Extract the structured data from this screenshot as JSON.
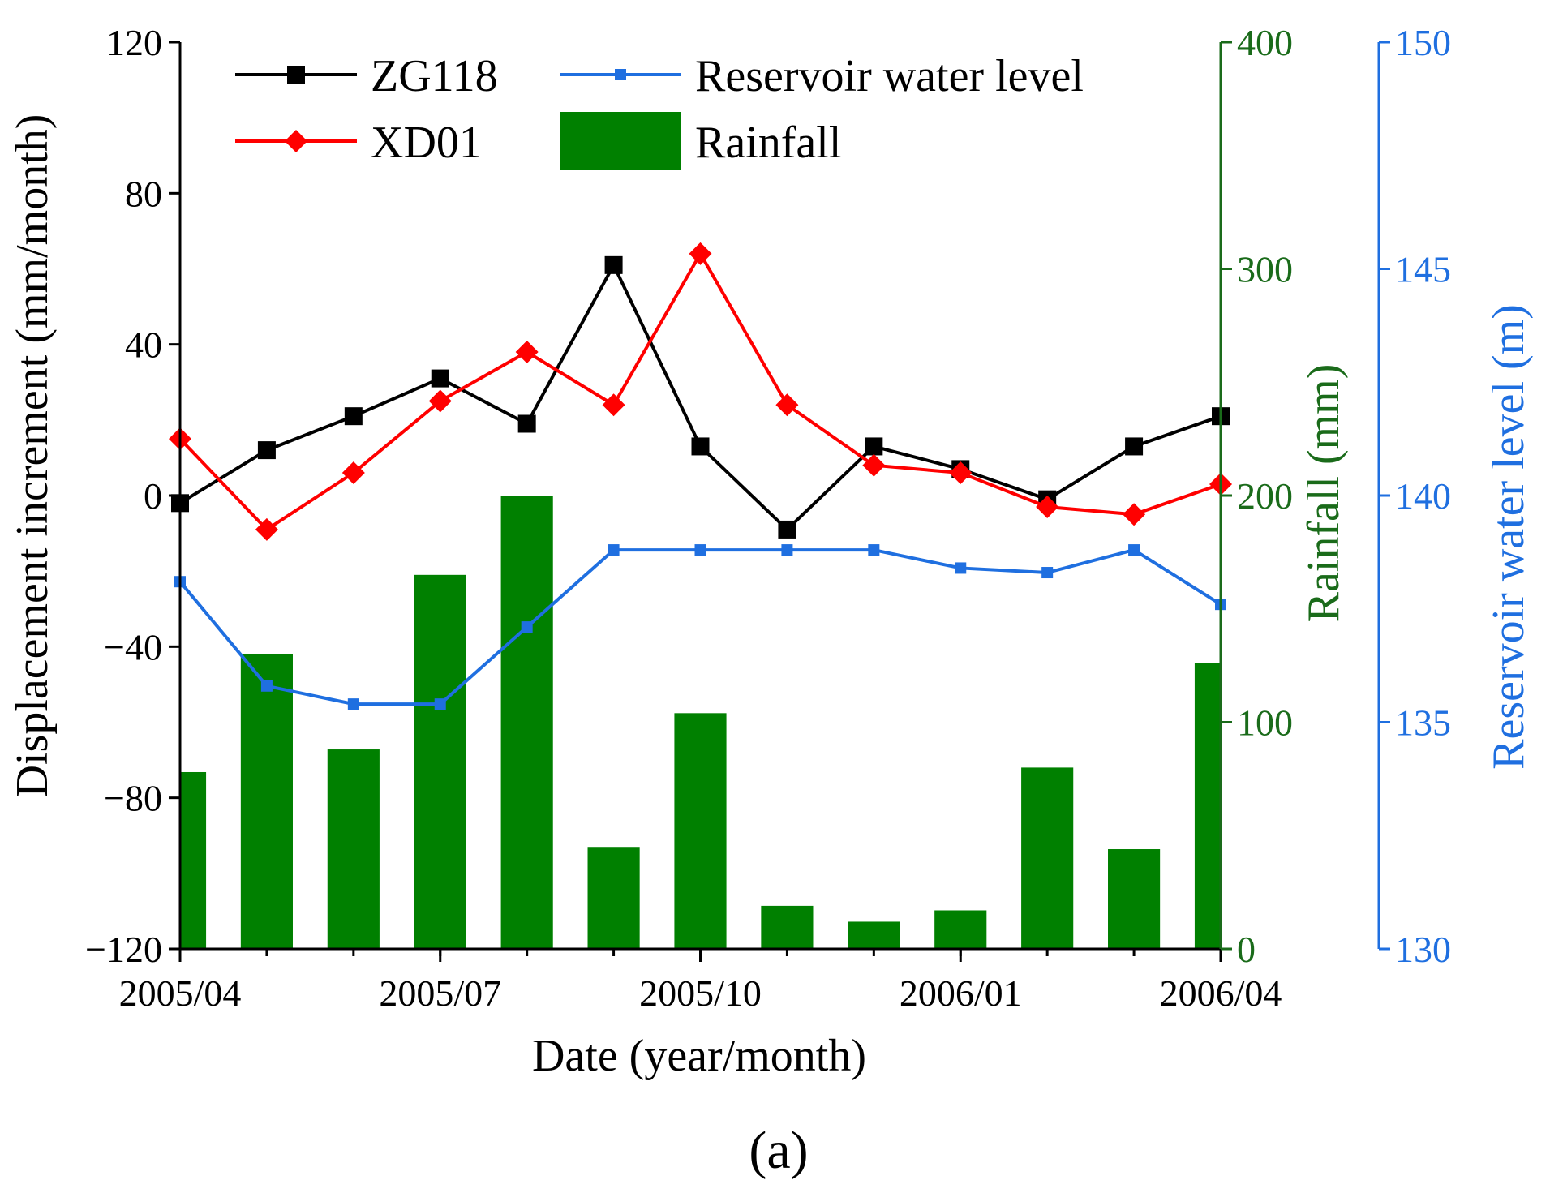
{
  "chart_data": {
    "type": "bar",
    "subtitle": "(a)",
    "xlabel": "Date (year/month)",
    "x": [
      0,
      1,
      2,
      3,
      4,
      5,
      6,
      7,
      8,
      9,
      10,
      11,
      12
    ],
    "x_range": [
      0,
      12
    ],
    "x_ticks": [
      {
        "x": 0,
        "label": "2005/04"
      },
      {
        "x": 3,
        "label": "2005/07"
      },
      {
        "x": 6,
        "label": "2005/10"
      },
      {
        "x": 9,
        "label": "2006/01"
      },
      {
        "x": 12,
        "label": "2006/04"
      }
    ],
    "axes": {
      "left": {
        "label": "Displacement increment (mm/month)",
        "ylim": [
          -120,
          120
        ],
        "ticks": [
          120,
          80,
          40,
          0,
          -40,
          -80,
          -120
        ],
        "tick_labels": [
          "120",
          "80",
          "40",
          "0",
          "−40",
          "−80",
          "−120"
        ],
        "color": "#000000"
      },
      "right1": {
        "label": "Rainfall (mm)",
        "ylim": [
          0,
          400
        ],
        "ticks": [
          0,
          100,
          200,
          300,
          400
        ],
        "tick_labels": [
          "0",
          "100",
          "200",
          "300",
          "400"
        ],
        "color": "#1a6b1a"
      },
      "right2": {
        "label": "Reservoir water level (m)",
        "ylim": [
          130,
          150
        ],
        "ticks": [
          130,
          135,
          140,
          145,
          150
        ],
        "tick_labels": [
          "130",
          "135",
          "140",
          "145",
          "150"
        ],
        "color": "#1f6fe0"
      }
    },
    "series": [
      {
        "name": "ZG118",
        "kind": "line",
        "axis": "left",
        "marker": "square",
        "color": "#000000",
        "values": [
          -2,
          12,
          21,
          31,
          19,
          61,
          13,
          -9,
          13,
          7,
          -1,
          13,
          21
        ]
      },
      {
        "name": "XD01",
        "kind": "line",
        "axis": "left",
        "marker": "diamond",
        "color": "#ff0000",
        "values": [
          15,
          -9,
          6,
          25,
          38,
          24,
          64,
          24,
          8,
          6,
          -3,
          -5,
          3
        ]
      },
      {
        "name": "Reservoir water level",
        "kind": "line",
        "axis": "right2",
        "marker": "small-square",
        "color": "#1f6fe0",
        "values": [
          138.1,
          135.8,
          135.4,
          135.4,
          137.1,
          138.8,
          138.8,
          138.8,
          138.8,
          138.4,
          138.3,
          138.8,
          137.6
        ]
      },
      {
        "name": "Rainfall",
        "kind": "bar",
        "axis": "right1",
        "color": "#008000",
        "values": [
          78,
          130,
          88,
          165,
          200,
          45,
          104,
          19,
          12,
          17,
          80,
          44,
          126
        ]
      }
    ],
    "legend": {
      "position": "top",
      "order": [
        "ZG118",
        "Reservoir water level",
        "XD01",
        "Rainfall"
      ]
    }
  }
}
